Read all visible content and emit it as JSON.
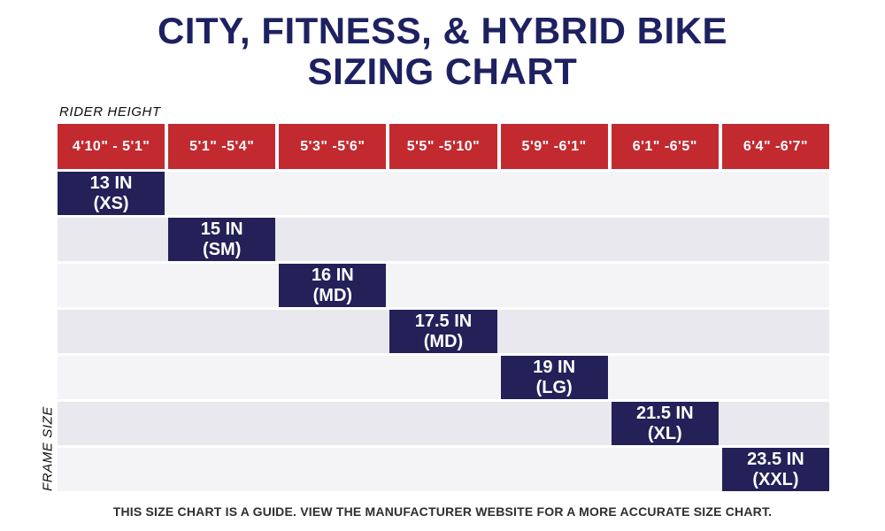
{
  "title": {
    "line1": "CITY, FITNESS, & HYBRID BIKE",
    "line2": "SIZING CHART"
  },
  "axis_labels": {
    "rider_height": "RIDER HEIGHT",
    "frame_size": "FRAME SIZE"
  },
  "table": {
    "rider_heights": [
      "4'10\" - 5'1\"",
      "5'1\" -5'4\"",
      "5'3\" -5'6\"",
      "5'5\" -5'10\"",
      "5'9\" -6'1\"",
      "6'1\" -6'5\"",
      "6'4\" -6'7\""
    ],
    "frame_sizes": [
      {
        "size": "13 IN",
        "label": "(XS)"
      },
      {
        "size": "15 IN",
        "label": "(SM)"
      },
      {
        "size": "16 IN",
        "label": "(MD)"
      },
      {
        "size": "17.5 IN",
        "label": "(MD)"
      },
      {
        "size": "19 IN",
        "label": "(LG)"
      },
      {
        "size": "21.5 IN",
        "label": "(XL)"
      },
      {
        "size": "23.5 IN",
        "label": "(XXL)"
      }
    ]
  },
  "footer": {
    "disclaimer": "THIS SIZE CHART IS A GUIDE. VIEW THE MANUFACTURER WEBSITE FOR A MORE ACCURATE SIZE CHART."
  },
  "colors": {
    "title_navy": "#1e2161",
    "header_red": "#c22a30",
    "cell_navy": "#232158",
    "stripe_light": "#f4f4f7",
    "stripe_dark": "#e8e8ee"
  },
  "chart_data": {
    "type": "table",
    "title": "CITY, FITNESS, & HYBRID BIKE SIZING CHART",
    "columns": [
      "Rider Height",
      "Frame Size"
    ],
    "rows": [
      [
        "4'10\" - 5'1\"",
        "13 IN (XS)"
      ],
      [
        "5'1\" -5'4\"",
        "15 IN (SM)"
      ],
      [
        "5'3\" -5'6\"",
        "16 IN (MD)"
      ],
      [
        "5'5\" -5'10\"",
        "17.5 IN (MD)"
      ],
      [
        "5'9\" -6'1\"",
        "19 IN (LG)"
      ],
      [
        "6'1\" -6'5\"",
        "21.5 IN (XL)"
      ],
      [
        "6'4\" -6'7\"",
        "23.5 IN (XXL)"
      ]
    ],
    "layout": "diagonal matrix: each frame size cell sits under its matching rider-height column; striped row backgrounds; legend/grid off"
  }
}
